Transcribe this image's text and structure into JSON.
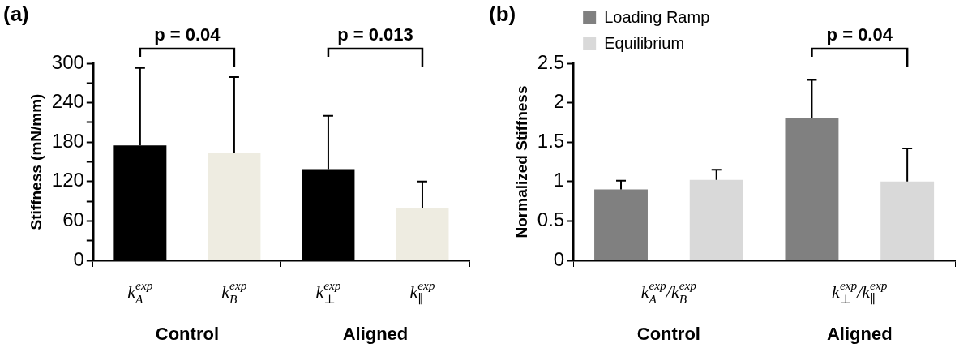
{
  "chart_data": [
    {
      "type": "bar",
      "title": "(a)",
      "ylabel": "Stiffness (mN/mm)",
      "categories": [
        "Control",
        "Aligned"
      ],
      "series": [
        {
          "color": "#000000",
          "values": [
            175,
            139
          ],
          "errors": [
            [
              175,
              293
            ],
            [
              139,
              220
            ]
          ]
        },
        {
          "color": "#eeece1",
          "values": [
            164,
            80
          ],
          "errors": [
            [
              164,
              279
            ],
            [
              80,
              120
            ]
          ]
        }
      ],
      "ylim": [
        0,
        300
      ],
      "yticks": [
        0,
        {
          "value": 30,
          "label": null
        },
        60,
        {
          "value": 90,
          "label": null
        },
        120,
        {
          "value": 150,
          "label": null
        },
        180,
        {
          "value": 210,
          "label": null
        },
        240,
        {
          "value": 270,
          "label": null
        },
        300
      ],
      "grid": false,
      "legend": false,
      "annotations": [
        "p = 0.04",
        "p = 0.013",
        "k$_{A}$$^{exp}$",
        "k$_{B}$$^{exp}$",
        "k$_{⊥}$$^{exp}$",
        "k$_{∥}$$^{exp}$"
      ]
    },
    {
      "type": "bar",
      "title": "(b)",
      "ylabel": "Normalized Stiffness",
      "categories": [
        "Control",
        "Aligned"
      ],
      "series": [
        {
          "name": "Loading Ramp",
          "color": "#808080",
          "values": [
            0.9,
            1.81
          ],
          "errors": [
            [
              0.9,
              1.01
            ],
            [
              1.81,
              2.29
            ]
          ]
        },
        {
          "name": "Equilibrium",
          "color": "#d9d9d9",
          "values": [
            1.02,
            1.0
          ],
          "errors": [
            [
              1.02,
              1.15
            ],
            [
              1.0,
              1.42
            ]
          ]
        }
      ],
      "ylim": [
        0,
        2.5
      ],
      "yticks": [
        0,
        0.5,
        1,
        1.5,
        2,
        2.5
      ],
      "grid": false,
      "legend": "top left",
      "annotations": [
        "p = 0.04",
        "k$_{A}$$^{exp}$/k$_{B}$$^{exp}$",
        "k$_{⊥}$$^{exp}$/k$_{∥}$$^{exp}$"
      ]
    }
  ]
}
